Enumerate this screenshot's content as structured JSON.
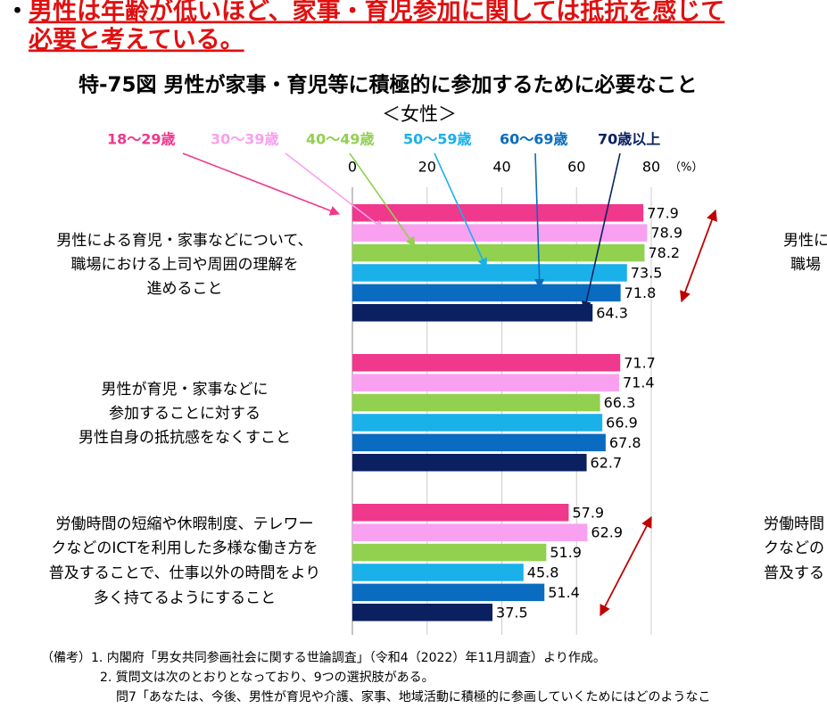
{
  "header": {
    "bullet": "・",
    "lines": [
      "男性は年齢が低いほど、家事・育児参加に関しては抵抗を感じて",
      "必要と考えている。"
    ]
  },
  "chart_data": {
    "type": "hbar",
    "title": "特-75図 男性が家事・育児等に積極的に参加するために必要なこと",
    "subtitle": "＜女性＞",
    "x_unit": "（%）",
    "categories": [
      [
        "男性による育児・家事などについて、",
        "職場における上司や周囲の理解を",
        "進めること"
      ],
      [
        "男性が育児・家事などに",
        "参加することに対する",
        "男性自身の抵抗感をなくすこと"
      ],
      [
        "労働時間の短縮や休暇制度、テレワー",
        "クなどのICTを利用した多様な働き方を",
        "普及することで、仕事以外の時間をより",
        "多く持てるようにすること"
      ]
    ],
    "series": [
      {
        "name": "18〜29歳",
        "color": "#f0388c",
        "values": [
          77.9,
          71.7,
          57.9
        ]
      },
      {
        "name": "30〜39歳",
        "color": "#f9a0f0",
        "values": [
          78.9,
          71.4,
          62.9
        ]
      },
      {
        "name": "40〜49歳",
        "color": "#92d050",
        "values": [
          78.2,
          66.3,
          51.9
        ]
      },
      {
        "name": "50〜59歳",
        "color": "#1ab0ea",
        "values": [
          73.5,
          66.9,
          45.8
        ]
      },
      {
        "name": "60〜69歳",
        "color": "#0a6cc0",
        "values": [
          71.8,
          67.8,
          51.4
        ]
      },
      {
        "name": "70歳以上",
        "color": "#0a2060",
        "values": [
          64.3,
          62.7,
          37.5
        ]
      }
    ],
    "xlim": [
      0,
      80
    ],
    "xticks": [
      0,
      20,
      40,
      60,
      80
    ],
    "grid": true,
    "legend": "top"
  },
  "cropped_right_panel": [
    "男性に",
    "職場",
    "労働時間",
    "クなどの",
    "普及する"
  ],
  "notes": [
    "（備考）1. 内閣府「男女共同参画社会に関する世論調査」（令和4（2022）年11月調査）より作成。",
    "2. 質問文は次のとおりとなっており、9つの選択肢がある。",
    "問7「あなたは、今後、男性が育児や介護、家事、地域活動に積極的に参画していくためにはどのようなこ"
  ]
}
